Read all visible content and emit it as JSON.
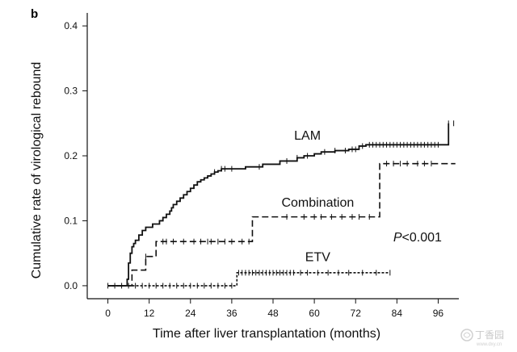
{
  "panel_label": "b",
  "watermark": {
    "text": "丁香园",
    "url": "www.dxy.cn"
  },
  "chart_data": {
    "type": "line",
    "title": "",
    "xlabel": "Time after liver transplantation (months)",
    "ylabel": "Cumulative rate of virological rebound",
    "xlim": [
      -6,
      102
    ],
    "ylim": [
      -0.02,
      0.42
    ],
    "xticks": [
      0,
      12,
      24,
      36,
      48,
      60,
      72,
      84,
      96
    ],
    "yticks": [
      0.0,
      0.1,
      0.2,
      0.3,
      0.4
    ],
    "ytick_labels": [
      "0.0",
      "0.1",
      "0.2",
      "0.3",
      "0.4"
    ],
    "grid": false,
    "series": [
      {
        "name": "LAM",
        "style": "solid",
        "color": "#111111",
        "x": [
          0,
          5,
          5.6,
          6,
          6.5,
          7,
          7.5,
          8,
          9,
          10,
          11,
          13,
          15,
          16,
          17,
          18,
          18.5,
          19,
          20,
          21,
          22,
          23,
          24,
          25,
          26,
          27,
          28,
          29,
          30,
          31,
          32,
          33,
          35,
          37,
          40,
          45,
          50,
          55,
          57,
          60,
          62,
          66,
          70,
          73,
          75,
          80,
          90,
          97,
          98.5,
          99
        ],
        "y": [
          0,
          0,
          0.01,
          0.035,
          0.05,
          0.06,
          0.065,
          0.07,
          0.078,
          0.085,
          0.09,
          0.095,
          0.1,
          0.105,
          0.11,
          0.115,
          0.12,
          0.125,
          0.13,
          0.135,
          0.14,
          0.145,
          0.15,
          0.155,
          0.16,
          0.163,
          0.166,
          0.169,
          0.172,
          0.175,
          0.177,
          0.18,
          0.18,
          0.18,
          0.183,
          0.187,
          0.192,
          0.197,
          0.2,
          0.203,
          0.206,
          0.208,
          0.21,
          0.215,
          0.217,
          0.217,
          0.217,
          0.217,
          0.217,
          0.25
        ],
        "censored_x": [
          31,
          33,
          34,
          36,
          44,
          52,
          55,
          58,
          63,
          66,
          69,
          71,
          72,
          74,
          76,
          77,
          78,
          79,
          80,
          81,
          82,
          83,
          84,
          85,
          86,
          87,
          88,
          89,
          90,
          91,
          92,
          93,
          94,
          95,
          96,
          99,
          100.5
        ]
      },
      {
        "name": "Combination",
        "style": "dashed",
        "color": "#111111",
        "x": [
          0,
          6,
          7,
          10,
          11,
          14,
          15,
          42,
          78,
          79,
          101
        ],
        "y": [
          0,
          0,
          0.024,
          0.024,
          0.045,
          0.068,
          0.068,
          0.106,
          0.106,
          0.188,
          0.188
        ],
        "censored_x": [
          11,
          16,
          17,
          19,
          22,
          25,
          27,
          29,
          30,
          32,
          34,
          36,
          39,
          41,
          52,
          57,
          60,
          62,
          65,
          68,
          71,
          73,
          76,
          81,
          83,
          85,
          87,
          90,
          92,
          94
        ]
      },
      {
        "name": "ETV",
        "style": "dotted",
        "color": "#111111",
        "x": [
          0,
          37,
          37.5,
          82
        ],
        "y": [
          0,
          0,
          0.02,
          0.02
        ],
        "censored_x": [
          0,
          2,
          4,
          6,
          8,
          10,
          12,
          14,
          16,
          18,
          20,
          22,
          24,
          26,
          28,
          30,
          32,
          34,
          36,
          38,
          39,
          40,
          41,
          42,
          43,
          44,
          45,
          46,
          47,
          48,
          49,
          50,
          51,
          52,
          53,
          54,
          56,
          58,
          61,
          64,
          67,
          70,
          74,
          78,
          82
        ]
      }
    ],
    "series_labels": [
      {
        "series": "LAM",
        "text": "LAM",
        "x": 58,
        "y": 0.225
      },
      {
        "series": "Combination",
        "text": "Combination",
        "x": 61,
        "y": 0.122
      },
      {
        "series": "ETV",
        "text": "ETV",
        "x": 61,
        "y": 0.038
      }
    ],
    "annotation": {
      "prefix": "P",
      "text": "<0.001",
      "x": 90,
      "y": 0.068
    }
  }
}
